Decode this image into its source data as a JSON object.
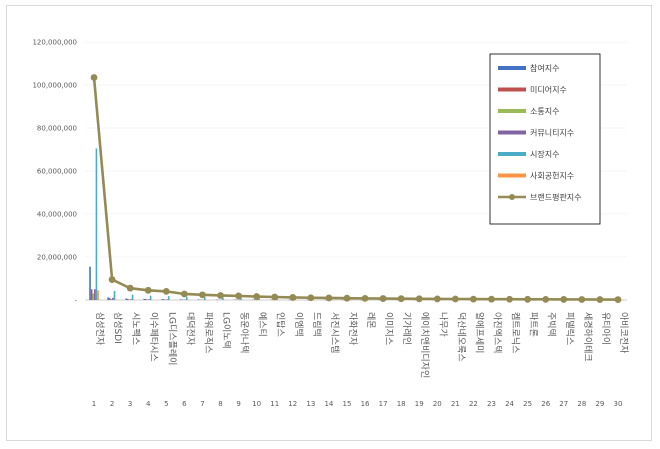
{
  "chart_data": {
    "type": "bar",
    "ylim": [
      0,
      120000000
    ],
    "y_ticks": [
      "120,000,000",
      "100,000,000",
      "80,000,000",
      "60,000,000",
      "40,000,000",
      "20,000,000",
      "-"
    ],
    "categories": [
      "삼성전자",
      "삼성SDI",
      "시노펙스",
      "이수페타시스",
      "LG디스플레이",
      "대덕전자",
      "파워로직스",
      "LG이노텍",
      "동운아나텍",
      "예스티",
      "인탑스",
      "이엠텍",
      "드림텍",
      "서진시스템",
      "자화전자",
      "레몬",
      "이미지스",
      "기가레인",
      "에이치앤비디자인",
      "나무가",
      "덕산네오룩스",
      "알에프세미",
      "아진엑스텍",
      "켐트로닉스",
      "파트론",
      "주빅텍",
      "피델릭스",
      "세경하이테크",
      "유티아이",
      "아비코전자"
    ],
    "ranks": [
      "1",
      "2",
      "3",
      "4",
      "5",
      "6",
      "7",
      "8",
      "9",
      "10",
      "11",
      "12",
      "13",
      "14",
      "15",
      "16",
      "17",
      "18",
      "19",
      "20",
      "21",
      "22",
      "23",
      "24",
      "25",
      "26",
      "27",
      "28",
      "29",
      "30"
    ],
    "legend_position": "top-right",
    "series": [
      {
        "name": "참여지수",
        "color": "#4472c4",
        "values": [
          15500000,
          1200000,
          700000,
          500000,
          400000,
          300000,
          250000,
          200000,
          180000,
          150000,
          120000,
          100000,
          90000,
          80000,
          70000,
          60000,
          50000,
          45000,
          40000,
          35000,
          30000,
          28000,
          25000,
          22000,
          20000,
          18000,
          16000,
          14000,
          12000,
          10000
        ]
      },
      {
        "name": "미디어지수",
        "color": "#c0504d",
        "values": [
          5000000,
          900000,
          500000,
          450000,
          400000,
          250000,
          200000,
          180000,
          150000,
          120000,
          100000,
          90000,
          80000,
          70000,
          60000,
          50000,
          40000,
          35000,
          30000,
          28000,
          25000,
          22000,
          20000,
          18000,
          16000,
          14000,
          12000,
          10000,
          9000,
          8000
        ]
      },
      {
        "name": "소통지수",
        "color": "#9bbb59",
        "values": [
          3000000,
          500000,
          300000,
          250000,
          200000,
          150000,
          120000,
          100000,
          90000,
          80000,
          70000,
          60000,
          50000,
          45000,
          40000,
          35000,
          30000,
          28000,
          25000,
          22000,
          20000,
          18000,
          16000,
          14000,
          12000,
          10000,
          9000,
          8000,
          7000,
          6000
        ]
      },
      {
        "name": "커뮤니티지수",
        "color": "#8064a2",
        "values": [
          5000000,
          1000000,
          400000,
          350000,
          300000,
          200000,
          150000,
          130000,
          110000,
          100000,
          90000,
          80000,
          70000,
          60000,
          50000,
          45000,
          40000,
          35000,
          30000,
          28000,
          25000,
          22000,
          20000,
          18000,
          16000,
          14000,
          12000,
          10000,
          9000,
          8000
        ]
      },
      {
        "name": "시장지수",
        "color": "#4bacc6",
        "values": [
          70500000,
          4200000,
          2500000,
          2000000,
          1800000,
          1500000,
          1300000,
          1100000,
          1000000,
          900000,
          800000,
          700000,
          600000,
          550000,
          500000,
          450000,
          400000,
          380000,
          350000,
          320000,
          300000,
          280000,
          260000,
          240000,
          220000,
          200000,
          180000,
          160000,
          140000,
          120000
        ]
      },
      {
        "name": "사회공헌지수",
        "color": "#f79646",
        "values": [
          4500000,
          200000,
          50000,
          50000,
          100000,
          30000,
          20000,
          20000,
          20000,
          20000,
          20000,
          10000,
          10000,
          10000,
          10000,
          10000,
          10000,
          10000,
          5000,
          5000,
          5000,
          5000,
          5000,
          5000,
          5000,
          5000,
          5000,
          5000,
          5000,
          5000
        ]
      },
      {
        "name": "브랜드평판지수",
        "color": "#948a54",
        "type": "line",
        "values": [
          103500000,
          9500000,
          5500000,
          4500000,
          4000000,
          2800000,
          2400000,
          2100000,
          1900000,
          1600000,
          1400000,
          1200000,
          1050000,
          950000,
          850000,
          750000,
          680000,
          620000,
          560000,
          500000,
          460000,
          420000,
          390000,
          360000,
          330000,
          300000,
          270000,
          240000,
          210000,
          190000
        ]
      }
    ]
  }
}
